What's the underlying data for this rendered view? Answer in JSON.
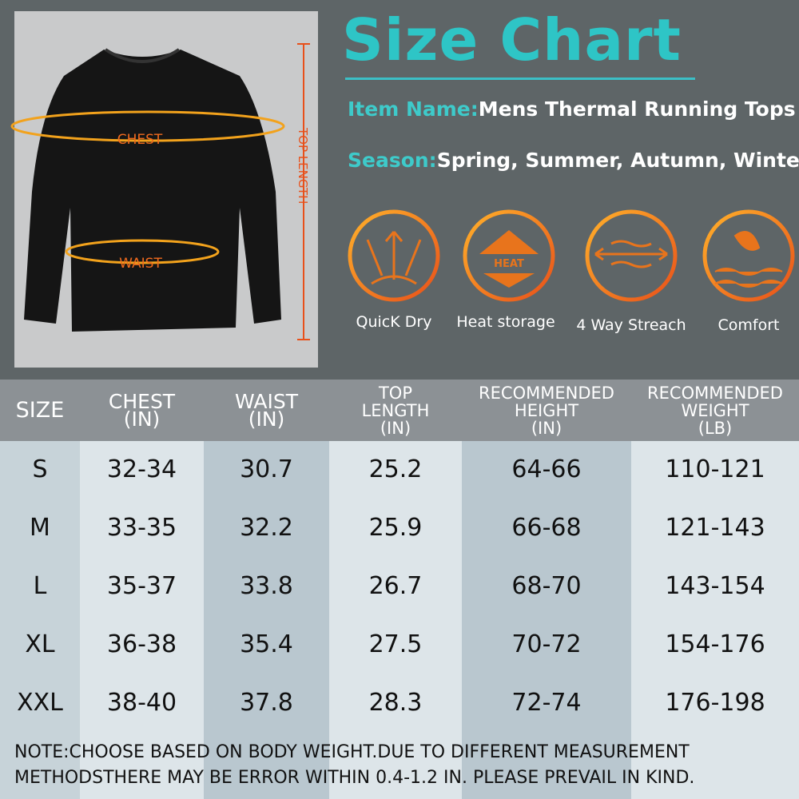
{
  "title": "Size Chart",
  "item": {
    "label": "Item Name:",
    "value": "Mens Thermal Running Tops"
  },
  "season": {
    "label": "Season:",
    "value": "Spring, Summer, Autumn, Winter"
  },
  "shirt_labels": {
    "chest": "CHEST",
    "waist": "WAIST",
    "length": "TOP LENGTH"
  },
  "features": [
    "QuicK Dry",
    "Heat storage",
    "4 Way Streach",
    "Comfort"
  ],
  "heat_icon_text": "HEAT",
  "table": {
    "headers": [
      {
        "name": "SIZE"
      },
      {
        "name": "CHEST",
        "unit": "(IN)"
      },
      {
        "name": "WAIST",
        "unit": "(IN)"
      },
      {
        "name": "TOP LENGTH",
        "unit": "(IN)"
      },
      {
        "name": "RECOMMENDED HEIGHT",
        "unit": "(IN)"
      },
      {
        "name": "RECOMMENDED WEIGHT",
        "unit": "(LB)"
      }
    ],
    "rows": [
      [
        "S",
        "32-34",
        "30.7",
        "25.2",
        "64-66",
        "110-121"
      ],
      [
        "M",
        "33-35",
        "32.2",
        "25.9",
        "66-68",
        "121-143"
      ],
      [
        "L",
        "35-37",
        "33.8",
        "26.7",
        "68-70",
        "143-154"
      ],
      [
        "XL",
        "36-38",
        "35.4",
        "27.5",
        "70-72",
        "154-176"
      ],
      [
        "XXL",
        "38-40",
        "37.8",
        "28.3",
        "72-74",
        "176-198"
      ]
    ]
  },
  "note": "NOTE:CHOOSE BASED ON BODY WEIGHT.DUE TO DIFFERENT MEASUREMENT METHODSTHERE MAY BE ERROR WITHIN 0.4-1.2 IN. PLEASE PREVAIL IN KIND."
}
